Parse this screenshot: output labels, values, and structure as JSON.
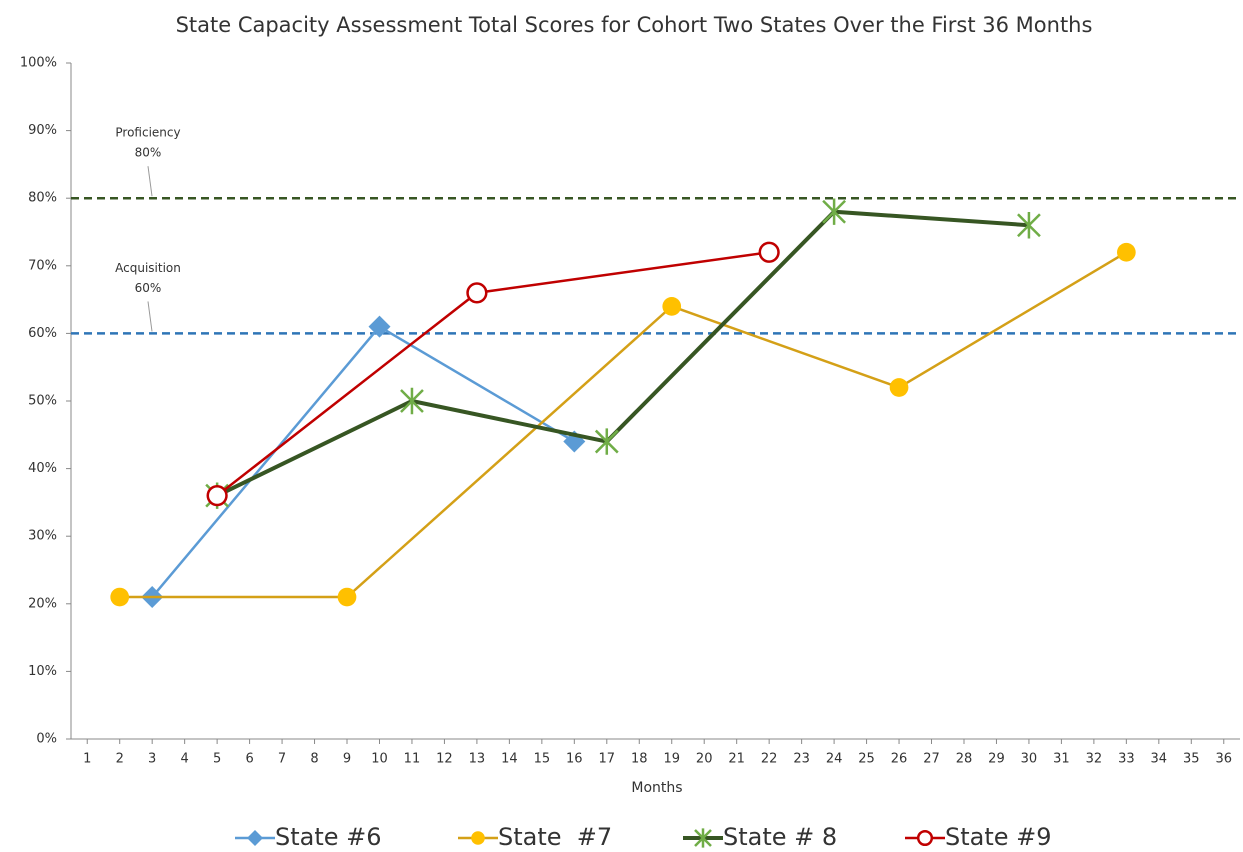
{
  "chart_data": {
    "type": "line",
    "title": "State Capacity Assessment Total Scores for Cohort Two States Over the First 36 Months",
    "x_label": "Months",
    "xlim": [
      0.5,
      36.5
    ],
    "xticks": [
      1,
      2,
      3,
      4,
      5,
      6,
      7,
      8,
      9,
      10,
      11,
      12,
      13,
      14,
      15,
      16,
      17,
      18,
      19,
      20,
      21,
      22,
      23,
      24,
      25,
      26,
      27,
      28,
      29,
      30,
      31,
      32,
      33,
      34,
      35,
      36
    ],
    "ylim": [
      0,
      100
    ],
    "yticks": [
      {
        "value": 0,
        "label": "0%"
      },
      {
        "value": 10,
        "label": "10%"
      },
      {
        "value": 20,
        "label": "20%"
      },
      {
        "value": 30,
        "label": "30%"
      },
      {
        "value": 40,
        "label": "40%"
      },
      {
        "value": 50,
        "label": "50%"
      },
      {
        "value": 60,
        "label": "60%"
      },
      {
        "value": 70,
        "label": "70%"
      },
      {
        "value": 80,
        "label": "80%"
      },
      {
        "value": 90,
        "label": "90%"
      },
      {
        "value": 100,
        "label": "100%"
      }
    ],
    "legend": "bottom",
    "reference_lines": [
      {
        "name": "Proficiency",
        "value": 80,
        "value_label": "80%",
        "color": "#375623"
      },
      {
        "name": "Acquisition",
        "value": 60,
        "value_label": "60%",
        "color": "#2e75b6"
      }
    ],
    "series": [
      {
        "name": "State #6",
        "color": "#5b9bd5",
        "marker_color": "#5b9bd5",
        "marker": "diamond",
        "x": [
          3,
          10,
          16
        ],
        "values": [
          21,
          61,
          44
        ]
      },
      {
        "name": "State  #7",
        "color": "#d4a017",
        "marker_color": "#ffc000",
        "marker": "circle",
        "x": [
          2,
          9,
          19,
          26,
          33
        ],
        "values": [
          21,
          21,
          64,
          52,
          72
        ]
      },
      {
        "name": "State # 8",
        "color": "#375623",
        "marker_color": "#70ad47",
        "marker": "asterisk",
        "x": [
          5,
          11,
          17,
          24,
          30
        ],
        "values": [
          36,
          50,
          44,
          78,
          76
        ]
      },
      {
        "name": "State #9",
        "color": "#c00000",
        "marker_color": "#c00000",
        "marker": "open-circle",
        "x": [
          5,
          13,
          22
        ],
        "values": [
          36,
          66,
          72
        ]
      }
    ]
  }
}
